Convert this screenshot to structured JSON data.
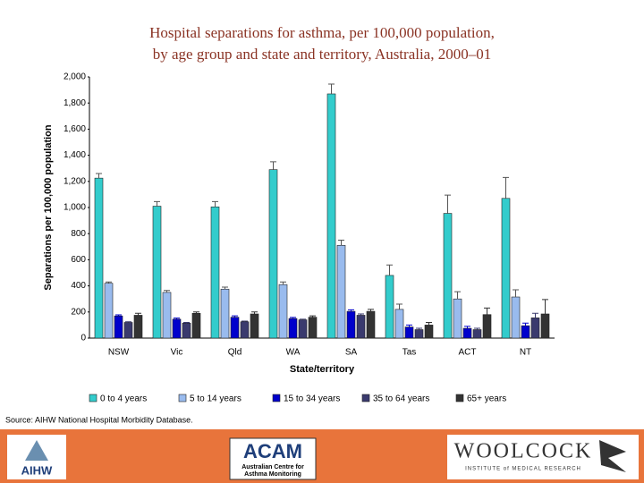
{
  "chart_data": {
    "type": "bar",
    "title": "Hospital separations for asthma, per 100,000 population,",
    "subtitle": "by age group and state and territory, Australia, 2000–01",
    "x_label": "State/territory",
    "y_label": "Separations per 100,000 population",
    "categories": [
      "NSW",
      "Vic",
      "Qld",
      "WA",
      "SA",
      "Tas",
      "ACT",
      "NT"
    ],
    "series": [
      {
        "name": "0 to 4 years",
        "color": "#33cccc",
        "values": [
          1225,
          1010,
          1005,
          1290,
          1870,
          480,
          955,
          1070
        ],
        "errors": [
          35,
          35,
          40,
          60,
          75,
          80,
          140,
          160
        ]
      },
      {
        "name": "5 to 14 years",
        "color": "#99bbee",
        "values": [
          420,
          350,
          375,
          410,
          710,
          220,
          300,
          315
        ],
        "errors": [
          10,
          15,
          15,
          20,
          40,
          40,
          55,
          55
        ]
      },
      {
        "name": "15 to 34 years",
        "color": "#0000cc",
        "values": [
          170,
          145,
          160,
          150,
          205,
          85,
          75,
          95
        ],
        "errors": [
          8,
          8,
          10,
          8,
          12,
          15,
          15,
          20
        ]
      },
      {
        "name": "35 to 64 years",
        "color": "#3a3a6e",
        "values": [
          120,
          115,
          125,
          140,
          175,
          65,
          65,
          155
        ],
        "errors": [
          5,
          5,
          5,
          5,
          10,
          10,
          10,
          35
        ]
      },
      {
        "name": "65+ years",
        "color": "#333333",
        "values": [
          175,
          190,
          185,
          160,
          205,
          100,
          180,
          185
        ],
        "errors": [
          15,
          10,
          15,
          10,
          15,
          20,
          50,
          110
        ]
      }
    ],
    "ylim": [
      0,
      2000
    ],
    "yticks": [
      0,
      200,
      400,
      600,
      800,
      {
        "value": 1000,
        "label": "1,000"
      },
      {
        "value": 1200,
        "label": "1,200"
      },
      {
        "value": 1400,
        "label": "1,400"
      },
      {
        "value": 1600,
        "label": "1,600"
      },
      {
        "value": 1800,
        "label": "1,800"
      },
      {
        "value": 2000,
        "label": "2,000"
      }
    ],
    "legend": "bottom",
    "source": "Source: AIHW National Hospital Morbidity Database."
  },
  "footer": {
    "logos": [
      "AIHW",
      "ACAM",
      "Australian Centre for",
      "Asthma Monitoring",
      "WOOLCOCK",
      "INSTITUTE of MEDICAL RESEARCH"
    ]
  }
}
